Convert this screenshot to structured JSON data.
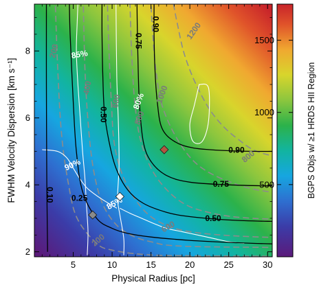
{
  "chart_data": {
    "type": "heatmap",
    "title": "",
    "xlabel": "Physical Radius  [pc]",
    "ylabel": "FWHM Velocity Dispersion  [km s⁻¹]",
    "xlim": [
      0,
      30.6
    ],
    "ylim": [
      1.85,
      9.4
    ],
    "xticks": [
      5,
      10,
      15,
      20,
      25,
      30
    ],
    "yticks": [
      2,
      4,
      6,
      8
    ],
    "colorbar": {
      "label": "BGPS Objs w/ ≥1 HRDS HII Region",
      "range": [
        0,
        1750
      ],
      "ticks": [
        500,
        1000,
        1500
      ],
      "colormap": [
        "#5b1a7a",
        "#3b3ca8",
        "#2e6fd0",
        "#16a6e0",
        "#12b4a0",
        "#2cb24a",
        "#8cc63e",
        "#d8d52c",
        "#f0a830",
        "#e0532a",
        "#c8242a"
      ]
    },
    "contours": {
      "fraction_lines": {
        "color": "#000000",
        "levels": [
          {
            "label": "0.10",
            "x": [
              1.7,
              1.6,
              1.55,
              1.55
            ],
            "y": [
              2.0,
              4.0,
              7.0,
              9.4
            ]
          },
          {
            "label": "0.25",
            "x": [
              40.0,
              30.0,
              25.0,
              20.0,
              15.0,
              12.0,
              10.0,
              8.0,
              6.2,
              5.4,
              5.0,
              4.6,
              4.5
            ],
            "y": [
              2.18,
              2.24,
              2.28,
              2.34,
              2.44,
              2.55,
              2.7,
              3.0,
              3.8,
              5.0,
              6.5,
              8.5,
              9.4
            ]
          },
          {
            "label": "0.50",
            "x": [
              40.0,
              30.0,
              25.0,
              20.0,
              17.0,
              14.0,
              12.0,
              10.5,
              9.6,
              9.0,
              8.8,
              8.7,
              8.7
            ],
            "y": [
              2.88,
              2.91,
              2.95,
              3.05,
              3.18,
              3.45,
              3.85,
              4.5,
              5.3,
              6.2,
              7.3,
              8.5,
              9.4
            ]
          },
          {
            "label": "0.75",
            "x": [
              40.0,
              30.0,
              25.0,
              20.0,
              17.0,
              15.0,
              14.0,
              13.5,
              13.3,
              13.2
            ],
            "y": [
              3.95,
              3.97,
              4.0,
              4.08,
              4.28,
              4.7,
              5.3,
              6.5,
              8.0,
              9.4
            ]
          },
          {
            "label": "0.90",
            "x": [
              40.0,
              30.0,
              25.0,
              20.5,
              18.0,
              16.4,
              15.8,
              15.5,
              15.4,
              15.4
            ],
            "y": [
              5.02,
              5.0,
              5.02,
              5.1,
              5.3,
              5.7,
              6.5,
              7.5,
              8.5,
              9.4
            ]
          }
        ]
      },
      "count_lines": {
        "color": "#8c8c8c",
        "levels": [
          {
            "label": "200",
            "x": [
              40.0,
              20.0,
              14.0,
              10.0,
              8.0,
              5.5,
              4.4,
              3.5,
              3.0,
              2.7
            ],
            "y": [
              1.86,
              1.88,
              1.92,
              2.05,
              2.25,
              3.0,
              4.0,
              5.5,
              7.5,
              9.4
            ]
          },
          {
            "label": "400",
            "x": [
              40.0,
              20.0,
              15.0,
              12.0,
              10.0,
              8.5,
              7.5,
              6.9,
              6.5,
              6.3
            ],
            "y": [
              2.12,
              2.16,
              2.3,
              2.55,
              2.95,
              3.6,
              4.6,
              5.9,
              7.5,
              9.4
            ]
          },
          {
            "label": "600",
            "x": [
              40.0,
              28.0,
              20.0,
              16.0,
              13.5,
              11.5,
              10.3,
              9.9,
              9.6,
              9.4
            ],
            "y": [
              2.4,
              2.45,
              2.6,
              2.9,
              3.4,
              4.2,
              5.2,
              6.5,
              8.0,
              9.4
            ]
          },
          {
            "label": "800",
            "x": [
              40.0,
              28.0,
              22.0,
              18.5,
              15.5,
              13.7,
              12.9,
              12.5,
              12.3
            ],
            "y": [
              2.95,
              3.0,
              3.2,
              3.55,
              4.3,
              5.3,
              6.5,
              8.0,
              9.4
            ]
          },
          {
            "label": "1000",
            "x": [
              40.0,
              30.0,
              25.0,
              21.0,
              18.3,
              16.4,
              15.6,
              15.2,
              15.0
            ],
            "y": [
              3.6,
              3.8,
              4.1,
              4.6,
              5.4,
              6.4,
              7.5,
              8.6,
              9.4
            ]
          },
          {
            "label": "1200",
            "x": [
              40.0,
              30.0,
              26.0,
              23.0,
              20.8,
              19.3,
              18.4,
              17.9
            ],
            "y": [
              4.6,
              4.9,
              5.4,
              6.1,
              7.0,
              7.9,
              8.8,
              9.4
            ]
          }
        ]
      },
      "percent_lines": {
        "color": "#ffffff",
        "levels": [
          {
            "label": "85%",
            "x": [
              6.8,
              6.9,
              6.7,
              6.5,
              6.2,
              5.9,
              5.6,
              5.4,
              5.5,
              5.6
            ],
            "y": [
              1.9,
              2.6,
              3.4,
              4.2,
              5.0,
              6.0,
              7.0,
              8.0,
              8.8,
              9.4
            ]
          },
          {
            "label": "80%",
            "x": [
              11.5,
              11.5,
              11.0,
              10.7,
              10.9,
              10.8,
              10.6,
              10.5
            ],
            "y": [
              1.9,
              2.4,
              3.1,
              3.6,
              4.6,
              5.9,
              7.2,
              9.4
            ]
          },
          {
            "label": "90%",
            "x": [
              1.0,
              3.0,
              4.2,
              5.0,
              5.8,
              6.8,
              8.5,
              10.6
            ],
            "y": [
              5.05,
              5.0,
              4.8,
              4.5,
              4.2,
              3.9,
              3.6,
              3.3
            ]
          },
          {
            "label": "85%",
            "x": [
              11.0,
              12.3,
              13.8,
              15.3,
              17.0,
              19.0,
              21.0,
              23.0,
              25.0,
              27.0
            ],
            "y": [
              3.3,
              3.15,
              3.0,
              2.85,
              2.7,
              2.6,
              2.5,
              2.4,
              2.3,
              2.25
            ]
          }
        ],
        "loop": {
          "x": [
            21.2,
            22.4,
            22.4,
            21.6,
            20.4,
            20.0,
            20.6,
            21.2
          ],
          "y": [
            7.0,
            6.9,
            5.9,
            5.3,
            5.3,
            5.8,
            6.4,
            7.0
          ]
        }
      }
    },
    "markers": [
      {
        "name": "gray diamond",
        "x": 7.5,
        "y": 3.1,
        "color": "#8a8a8a"
      },
      {
        "name": "white diamond",
        "x": 11.0,
        "y": 3.65,
        "color": "#ffffff"
      },
      {
        "name": "brown diamond",
        "x": 16.7,
        "y": 5.05,
        "color": "#b2563f"
      }
    ],
    "grid": false,
    "legend": "none"
  }
}
